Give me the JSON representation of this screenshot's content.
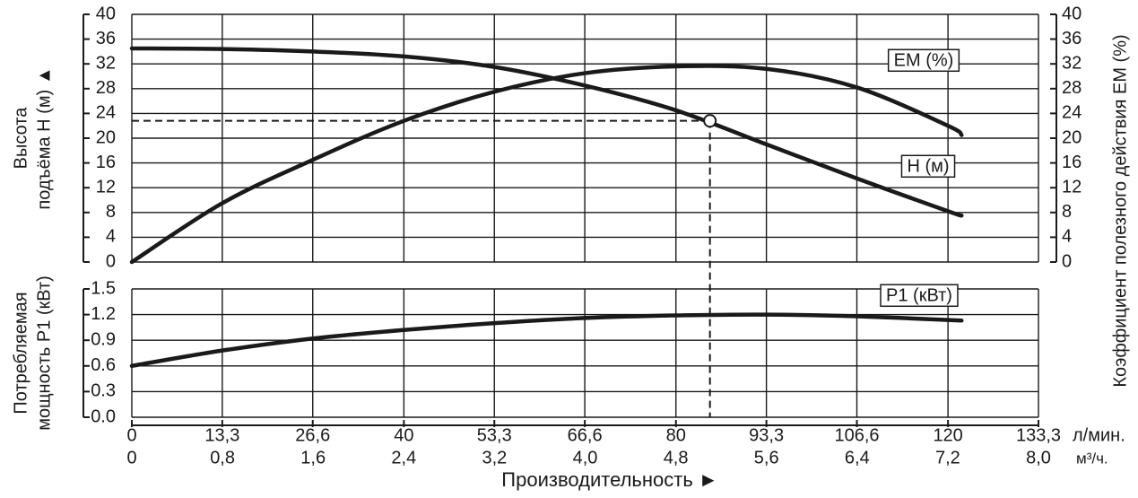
{
  "chart_data": [
    {
      "type": "line",
      "ylabel": [
        "Высота",
        "подъёма H (м) ▲"
      ],
      "y2label": "Коэффициент полезного действия EM (%)",
      "xlim": [
        0,
        133.3
      ],
      "ylim": [
        0,
        40
      ],
      "yticks": [
        0,
        4,
        8,
        12,
        16,
        20,
        24,
        28,
        32,
        36,
        40
      ],
      "y2lim": [
        0,
        40
      ],
      "y2ticks": [
        0,
        4,
        8,
        12,
        16,
        20,
        24,
        28,
        32,
        36,
        40
      ],
      "grid": true,
      "x": [
        0,
        13.3,
        26.6,
        40,
        53.3,
        66.6,
        80,
        93.3,
        106.6,
        120,
        122
      ],
      "series": [
        {
          "name": "H (м)",
          "color": "#1a1a1a",
          "values": [
            34.5,
            34.4,
            34,
            33.2,
            31.5,
            28.5,
            24.5,
            19,
            13.5,
            8.2,
            7.5
          ]
        },
        {
          "name": "EM (%)",
          "color": "#1a1a1a",
          "axis": "y2",
          "values": [
            0,
            9.5,
            16.5,
            22.8,
            27.5,
            30.5,
            31.6,
            31.2,
            28.2,
            22,
            20.5
          ]
        }
      ],
      "operating_point": {
        "x": 85,
        "y": 22.8
      }
    },
    {
      "type": "line",
      "ylabel": [
        "Потребляемая",
        "мощность P1 (кВт)"
      ],
      "xlabel": "Производительность ►",
      "xlim": [
        0,
        133.3
      ],
      "xticks": [
        0,
        {
          "value": 13.3,
          "label": "13,3"
        },
        {
          "value": 26.6,
          "label": "26,6"
        },
        40,
        {
          "value": 53.3,
          "label": "53,3"
        },
        {
          "value": 66.6,
          "label": "66,6"
        },
        80,
        {
          "value": 93.3,
          "label": "93,3"
        },
        {
          "value": 106.6,
          "label": "106,6"
        },
        120,
        {
          "value": 133.3,
          "label": "133,3"
        }
      ],
      "xunit": "л/мин.",
      "x2lim": [
        0,
        8
      ],
      "x2ticks": [
        0,
        {
          "value": 0.8,
          "label": "0,8"
        },
        {
          "value": 1.6,
          "label": "1,6"
        },
        {
          "value": 2.4,
          "label": "2,4"
        },
        {
          "value": 3.2,
          "label": "3,2"
        },
        {
          "value": 4,
          "label": "4,0"
        },
        {
          "value": 4.8,
          "label": "4,8"
        },
        {
          "value": 5.6,
          "label": "5,6"
        },
        {
          "value": 6.4,
          "label": "6,4"
        },
        {
          "value": 7.2,
          "label": "7,2"
        },
        {
          "value": 8,
          "label": "8,0"
        }
      ],
      "x2unit": "м³/ч.",
      "ylim": [
        0,
        1.5
      ],
      "yticks": [
        {
          "value": 0,
          "label": "0.0"
        },
        0.3,
        0.6,
        0.9,
        1.2,
        1.5
      ],
      "grid": true,
      "x": [
        0,
        13.3,
        26.6,
        40,
        53.3,
        66.6,
        80,
        93.3,
        106.6,
        122
      ],
      "series": [
        {
          "name": "P1 (кВт)",
          "color": "#1a1a1a",
          "values": [
            0.6,
            0.78,
            0.92,
            1.02,
            1.1,
            1.16,
            1.19,
            1.2,
            1.18,
            1.13
          ]
        }
      ]
    }
  ]
}
